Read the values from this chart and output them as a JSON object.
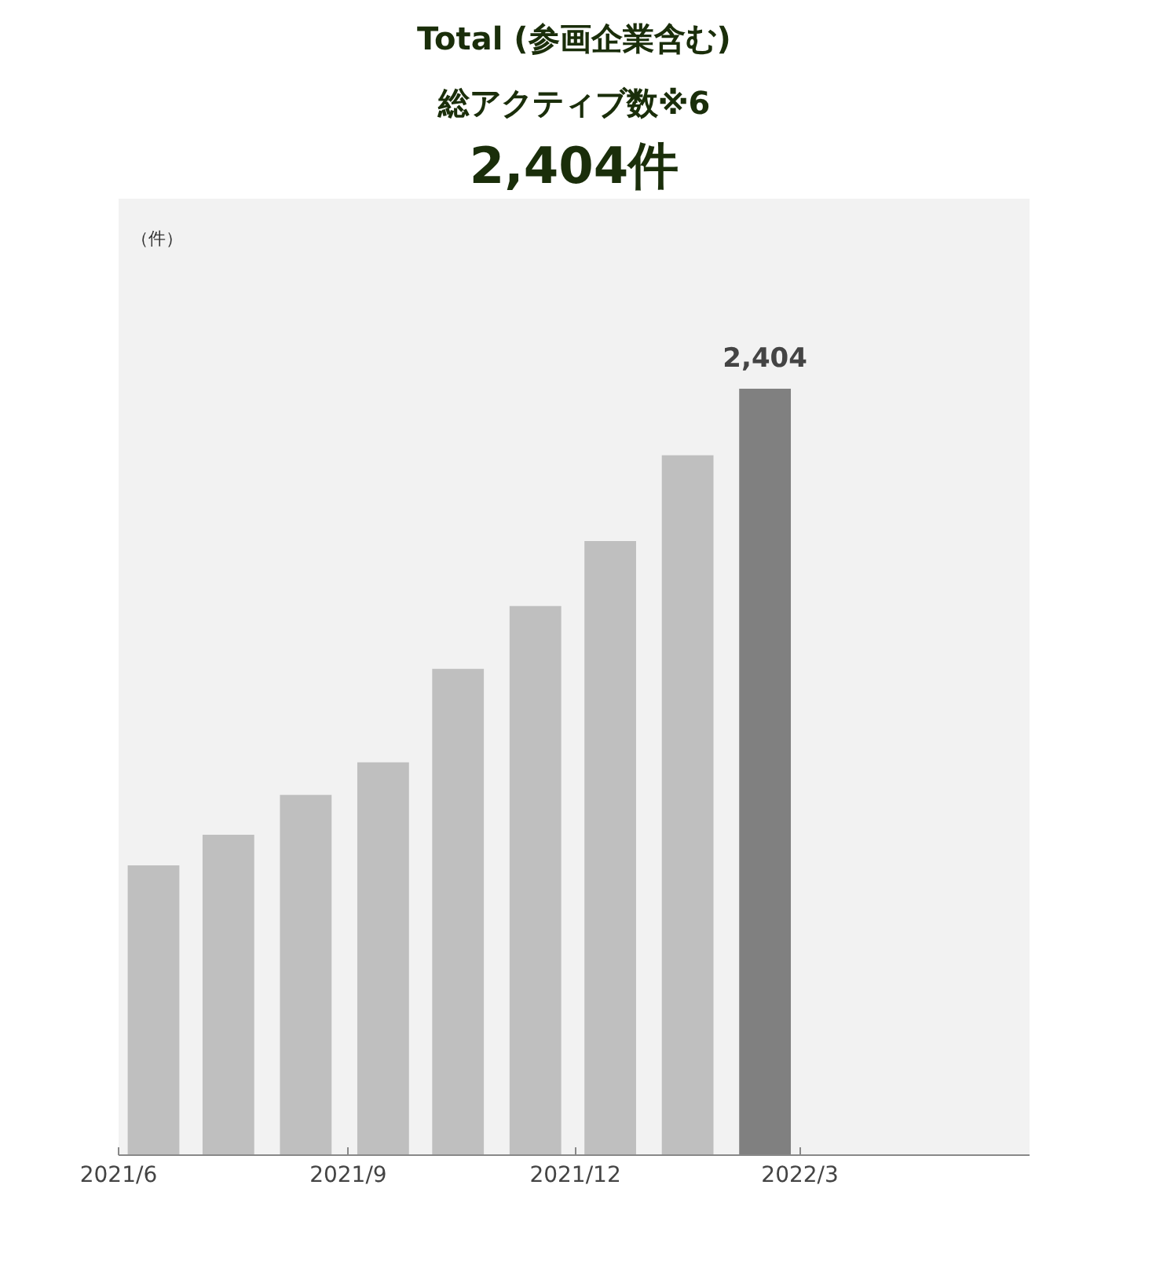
{
  "chart_data": {
    "type": "bar",
    "title": "Total (参画企業含む)",
    "subtitle": "総アクティブ数※6",
    "annotations": [
      "2,404件"
    ],
    "ylabel": "（件）",
    "x": [
      "2021-06-15",
      "2021-07-15",
      "2021-08-15",
      "2021-09-15",
      "2021-10-15",
      "2021-11-15",
      "2021-12-15",
      "2022-01-15",
      "2022-02-15"
    ],
    "values": [
      909,
      1005,
      1130,
      1232,
      1525,
      1722,
      1926,
      2195,
      2404
    ],
    "colors": [
      "#bfbfbf",
      "#bfbfbf",
      "#bfbfbf",
      "#bfbfbf",
      "#bfbfbf",
      "#bfbfbf",
      "#bfbfbf",
      "#bfbfbf",
      "#808080"
    ],
    "value_labels": [
      null,
      null,
      null,
      null,
      null,
      null,
      null,
      null,
      "2,404"
    ],
    "ylim": [
      0,
      3000
    ],
    "xlim": [
      "2021-06-01",
      "2022-06-01"
    ],
    "xticks": [
      {
        "value": "2021-06-01",
        "label": "2021/6"
      },
      {
        "value": "2021-09-01",
        "label": "2021/9"
      },
      {
        "value": "2021-12-01",
        "label": "2021/12"
      },
      {
        "value": "2022-03-01",
        "label": "2022/3"
      }
    ],
    "tick_labels": "x",
    "grid": false
  }
}
